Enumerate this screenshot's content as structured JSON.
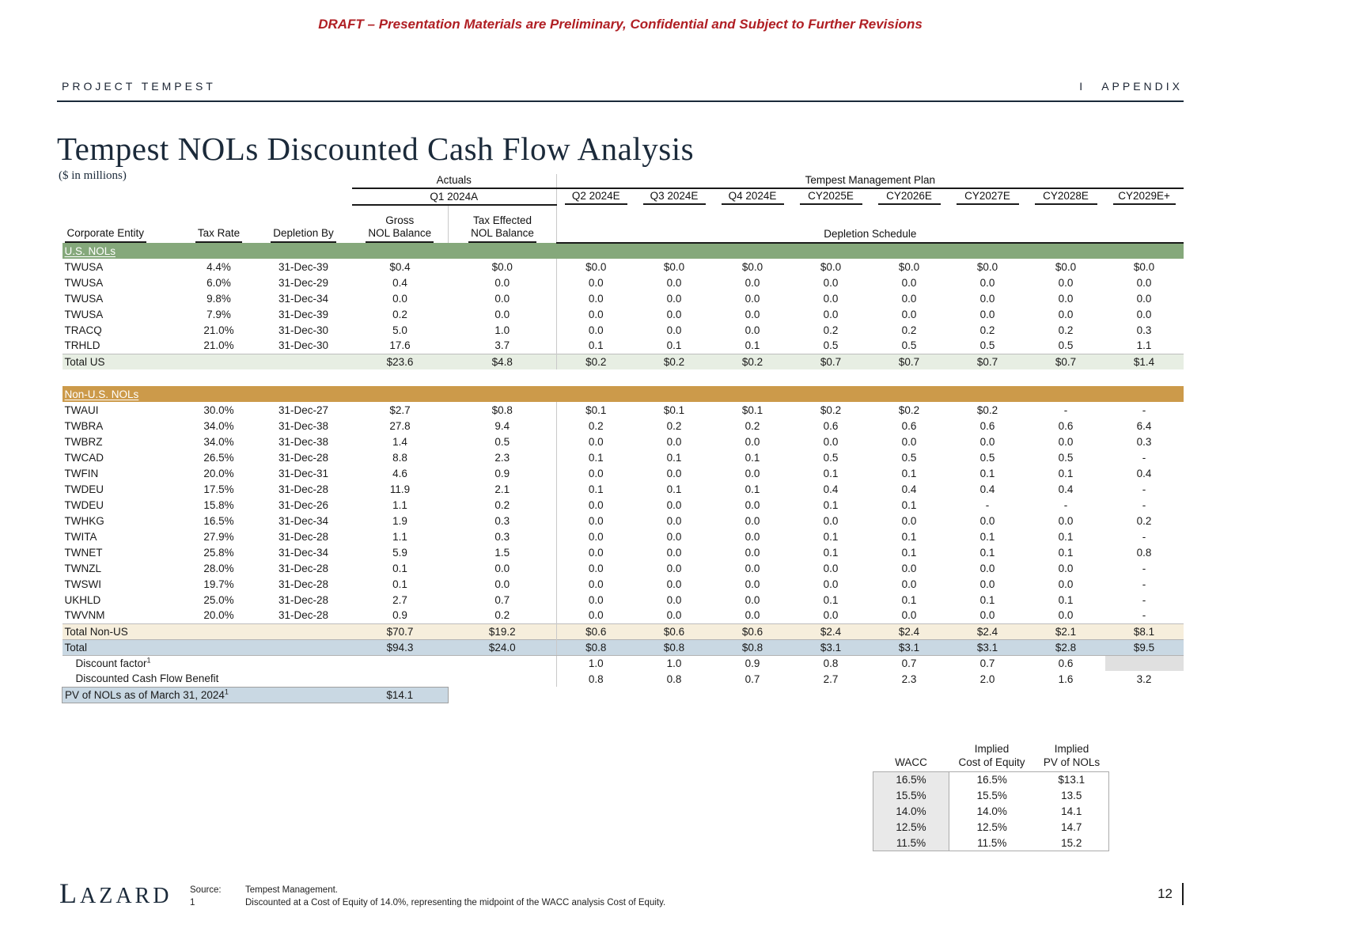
{
  "draft_notice": "DRAFT – Presentation Materials are Preliminary, Confidential and Subject to Further Revisions",
  "header": {
    "project": "PROJECT TEMPEST",
    "separator": "I",
    "section": "APPENDIX"
  },
  "title": "Tempest NOLs Discounted Cash Flow Analysis",
  "subtitle": "($ in millions)",
  "table": {
    "group_actuals": "Actuals",
    "group_plan": "Tempest Management Plan",
    "q1_header": "Q1 2024A",
    "periods": [
      "Q2 2024E",
      "Q3 2024E",
      "Q4 2024E",
      "CY2025E",
      "CY2026E",
      "CY2027E",
      "CY2028E",
      "CY2029E+"
    ],
    "col_entity": "Corporate Entity",
    "col_tax_rate": "Tax Rate",
    "col_depletion_by": "Depletion By",
    "col_gross_l1": "Gross",
    "col_gross_l2": "NOL Balance",
    "col_taxeff_l1": "Tax Effected",
    "col_taxeff_l2": "NOL Balance",
    "col_depletion_schedule": "Depletion Schedule",
    "us_section_label": "U.S. NOLs",
    "us_rows": [
      [
        "TWUSA",
        "4.4%",
        "31-Dec-39",
        "$0.4",
        "$0.0",
        "$0.0",
        "$0.0",
        "$0.0",
        "$0.0",
        "$0.0",
        "$0.0",
        "$0.0",
        "$0.0"
      ],
      [
        "TWUSA",
        "6.0%",
        "31-Dec-29",
        "0.4",
        "0.0",
        "0.0",
        "0.0",
        "0.0",
        "0.0",
        "0.0",
        "0.0",
        "0.0",
        "0.0"
      ],
      [
        "TWUSA",
        "9.8%",
        "31-Dec-34",
        "0.0",
        "0.0",
        "0.0",
        "0.0",
        "0.0",
        "0.0",
        "0.0",
        "0.0",
        "0.0",
        "0.0"
      ],
      [
        "TWUSA",
        "7.9%",
        "31-Dec-39",
        "0.2",
        "0.0",
        "0.0",
        "0.0",
        "0.0",
        "0.0",
        "0.0",
        "0.0",
        "0.0",
        "0.0"
      ],
      [
        "TRACQ",
        "21.0%",
        "31-Dec-30",
        "5.0",
        "1.0",
        "0.0",
        "0.0",
        "0.0",
        "0.2",
        "0.2",
        "0.2",
        "0.2",
        "0.3"
      ],
      [
        "TRHLD",
        "21.0%",
        "31-Dec-30",
        "17.6",
        "3.7",
        "0.1",
        "0.1",
        "0.1",
        "0.5",
        "0.5",
        "0.5",
        "0.5",
        "1.1"
      ]
    ],
    "total_us": [
      "Total US",
      "",
      "",
      "$23.6",
      "$4.8",
      "$0.2",
      "$0.2",
      "$0.2",
      "$0.7",
      "$0.7",
      "$0.7",
      "$0.7",
      "$1.4"
    ],
    "nonus_section_label": "Non-U.S. NOLs",
    "nonus_rows": [
      [
        "TWAUI",
        "30.0%",
        "31-Dec-27",
        "$2.7",
        "$0.8",
        "$0.1",
        "$0.1",
        "$0.1",
        "$0.2",
        "$0.2",
        "$0.2",
        "-",
        "-"
      ],
      [
        "TWBRA",
        "34.0%",
        "31-Dec-38",
        "27.8",
        "9.4",
        "0.2",
        "0.2",
        "0.2",
        "0.6",
        "0.6",
        "0.6",
        "0.6",
        "6.4"
      ],
      [
        "TWBRZ",
        "34.0%",
        "31-Dec-38",
        "1.4",
        "0.5",
        "0.0",
        "0.0",
        "0.0",
        "0.0",
        "0.0",
        "0.0",
        "0.0",
        "0.3"
      ],
      [
        "TWCAD",
        "26.5%",
        "31-Dec-28",
        "8.8",
        "2.3",
        "0.1",
        "0.1",
        "0.1",
        "0.5",
        "0.5",
        "0.5",
        "0.5",
        "-"
      ],
      [
        "TWFIN",
        "20.0%",
        "31-Dec-31",
        "4.6",
        "0.9",
        "0.0",
        "0.0",
        "0.0",
        "0.1",
        "0.1",
        "0.1",
        "0.1",
        "0.4"
      ],
      [
        "TWDEU",
        "17.5%",
        "31-Dec-28",
        "11.9",
        "2.1",
        "0.1",
        "0.1",
        "0.1",
        "0.4",
        "0.4",
        "0.4",
        "0.4",
        "-"
      ],
      [
        "TWDEU",
        "15.8%",
        "31-Dec-26",
        "1.1",
        "0.2",
        "0.0",
        "0.0",
        "0.0",
        "0.1",
        "0.1",
        "-",
        "-",
        "-"
      ],
      [
        "TWHKG",
        "16.5%",
        "31-Dec-34",
        "1.9",
        "0.3",
        "0.0",
        "0.0",
        "0.0",
        "0.0",
        "0.0",
        "0.0",
        "0.0",
        "0.2"
      ],
      [
        "TWITA",
        "27.9%",
        "31-Dec-28",
        "1.1",
        "0.3",
        "0.0",
        "0.0",
        "0.0",
        "0.1",
        "0.1",
        "0.1",
        "0.1",
        "-"
      ],
      [
        "TWNET",
        "25.8%",
        "31-Dec-34",
        "5.9",
        "1.5",
        "0.0",
        "0.0",
        "0.0",
        "0.1",
        "0.1",
        "0.1",
        "0.1",
        "0.8"
      ],
      [
        "TWNZL",
        "28.0%",
        "31-Dec-28",
        "0.1",
        "0.0",
        "0.0",
        "0.0",
        "0.0",
        "0.0",
        "0.0",
        "0.0",
        "0.0",
        "-"
      ],
      [
        "TWSWI",
        "19.7%",
        "31-Dec-28",
        "0.1",
        "0.0",
        "0.0",
        "0.0",
        "0.0",
        "0.0",
        "0.0",
        "0.0",
        "0.0",
        "-"
      ],
      [
        "UKHLD",
        "25.0%",
        "31-Dec-28",
        "2.7",
        "0.7",
        "0.0",
        "0.0",
        "0.0",
        "0.1",
        "0.1",
        "0.1",
        "0.1",
        "-"
      ],
      [
        "TWVNM",
        "20.0%",
        "31-Dec-28",
        "0.9",
        "0.2",
        "0.0",
        "0.0",
        "0.0",
        "0.0",
        "0.0",
        "0.0",
        "0.0",
        "-"
      ]
    ],
    "total_nonus": [
      "Total Non-US",
      "",
      "",
      "$70.7",
      "$19.2",
      "$0.6",
      "$0.6",
      "$0.6",
      "$2.4",
      "$2.4",
      "$2.4",
      "$2.1",
      "$8.1"
    ],
    "total_all": [
      "Total",
      "",
      "",
      "$94.3",
      "$24.0",
      "$0.8",
      "$0.8",
      "$0.8",
      "$3.1",
      "$3.1",
      "$3.1",
      "$2.8",
      "$9.5"
    ],
    "discount_factor": {
      "label": "Discount factor",
      "footnote_mark": "1",
      "values": [
        "1.0",
        "1.0",
        "0.9",
        "0.8",
        "0.7",
        "0.7",
        "0.6",
        ""
      ]
    },
    "dcf_benefit": {
      "label": "Discounted Cash Flow Benefit",
      "values": [
        "0.8",
        "0.8",
        "0.7",
        "2.7",
        "2.3",
        "2.0",
        "1.6",
        "3.2"
      ]
    },
    "pv_row": {
      "label": "PV of NOLs as of March 31, 2024",
      "footnote_mark": "1",
      "value": "$14.1"
    }
  },
  "wacc_table": {
    "col1_l1": "",
    "col1_l2": "WACC",
    "col2_l1": "Implied",
    "col2_l2": "Cost of Equity",
    "col3_l1": "Implied",
    "col3_l2": "PV of NOLs",
    "rows": [
      [
        "16.5%",
        "16.5%",
        "$13.1"
      ],
      [
        "15.5%",
        "15.5%",
        "13.5"
      ],
      [
        "14.0%",
        "14.0%",
        "14.1"
      ],
      [
        "12.5%",
        "12.5%",
        "14.7"
      ],
      [
        "11.5%",
        "11.5%",
        "15.2"
      ]
    ]
  },
  "footer": {
    "logo": "LAZARD",
    "source_label": "Source:",
    "source_text": "Tempest Management.",
    "footnote_num": "1",
    "footnote_text": "Discounted at a Cost of Equity of 14.0%, representing the midpoint of the WACC analysis Cost of Equity.",
    "page_number": "12"
  }
}
